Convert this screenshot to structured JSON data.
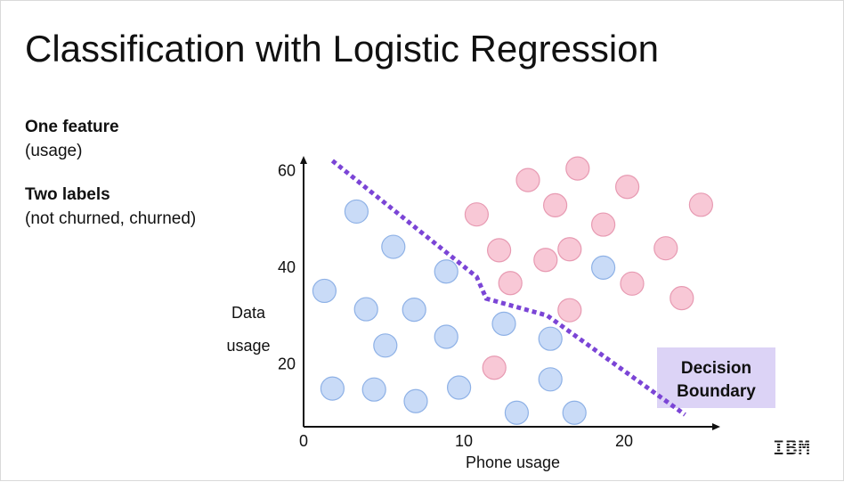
{
  "slide": {
    "title": "Classification with Logistic Regression",
    "feature_heading": "One feature",
    "feature_sub": "(usage)",
    "labels_heading": "Two labels",
    "labels_sub": "(not churned, churned)",
    "logo": "IBM"
  },
  "chart_data": {
    "type": "scatter",
    "xlabel": "Phone usage",
    "ylabel_lines": [
      "Data",
      "usage"
    ],
    "xlim": [
      0,
      26
    ],
    "ylim": [
      7,
      63
    ],
    "x_ticks": [
      0,
      10,
      20
    ],
    "y_ticks": [
      20,
      40,
      60
    ],
    "grid": false,
    "colors": {
      "not_churned": "#c9dbf7",
      "churned": "#f8c8d6",
      "not_churned_edge": "#8eb1e6",
      "churned_edge": "#e79ab2",
      "boundary": "#7b45d6",
      "annotation_bg": "#dcd3f6"
    },
    "series": [
      {
        "key": "not_churned",
        "points": [
          [
            3.3,
            51.5
          ],
          [
            5.6,
            44.2
          ],
          [
            1.3,
            35.1
          ],
          [
            3.9,
            31.3
          ],
          [
            6.9,
            31.2
          ],
          [
            5.1,
            23.8
          ],
          [
            8.9,
            25.6
          ],
          [
            8.9,
            39.1
          ],
          [
            12.5,
            28.3
          ],
          [
            15.4,
            25.2
          ],
          [
            18.7,
            39.9
          ],
          [
            1.8,
            14.9
          ],
          [
            4.4,
            14.7
          ],
          [
            7.0,
            12.3
          ],
          [
            9.7,
            15.1
          ],
          [
            13.3,
            9.9
          ],
          [
            15.4,
            16.8
          ],
          [
            16.9,
            9.9
          ]
        ]
      },
      {
        "key": "churned",
        "points": [
          [
            10.8,
            50.9
          ],
          [
            14.0,
            58.0
          ],
          [
            17.1,
            60.4
          ],
          [
            20.2,
            56.6
          ],
          [
            15.7,
            52.8
          ],
          [
            18.7,
            48.8
          ],
          [
            24.8,
            52.9
          ],
          [
            12.2,
            43.5
          ],
          [
            15.1,
            41.5
          ],
          [
            16.6,
            43.7
          ],
          [
            22.6,
            43.9
          ],
          [
            12.9,
            36.7
          ],
          [
            20.5,
            36.6
          ],
          [
            23.6,
            33.6
          ],
          [
            16.6,
            31.1
          ],
          [
            11.9,
            19.2
          ]
        ]
      }
    ],
    "boundary": [
      [
        1.8,
        62
      ],
      [
        10.8,
        38
      ],
      [
        11.4,
        33.5
      ],
      [
        15.2,
        30
      ],
      [
        23.8,
        9.5
      ]
    ],
    "annotation": {
      "text_lines": [
        "Decision",
        "Boundary"
      ]
    }
  }
}
